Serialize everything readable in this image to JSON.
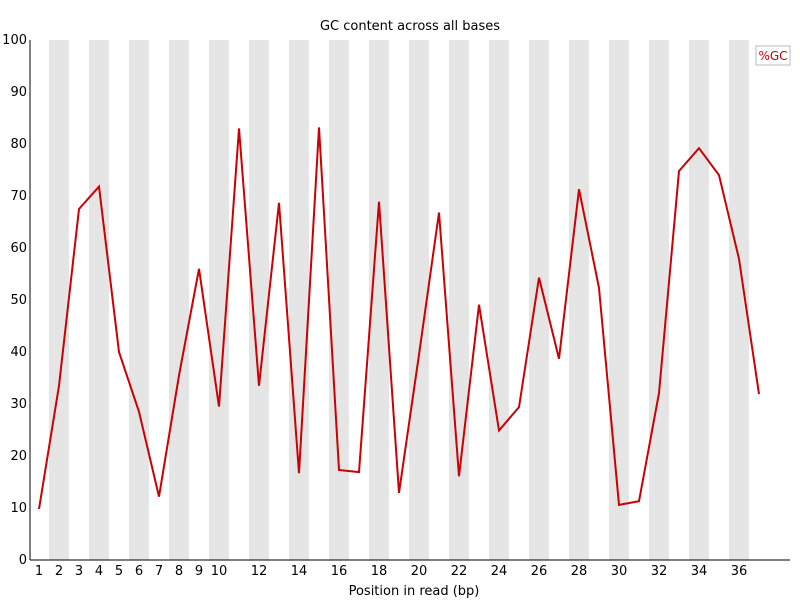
{
  "chart_data": {
    "type": "line",
    "title": "GC content across all bases",
    "xlabel": "Position in read (bp)",
    "ylabel": "",
    "ylim": [
      0,
      100
    ],
    "ytick_step": 10,
    "grid": false,
    "alternating_column_shading": true,
    "legend_placement": "top-right",
    "x_tick_labels": [
      "1",
      "2",
      "3",
      "4",
      "5",
      "6",
      "7",
      "8",
      "9",
      "10",
      "12",
      "14",
      "16",
      "18",
      "20",
      "22",
      "24",
      "26",
      "28",
      "30",
      "32",
      "34",
      "36"
    ],
    "x": [
      1,
      2,
      3,
      4,
      5,
      6,
      7,
      8,
      9,
      10,
      11,
      12,
      13,
      14,
      15,
      16,
      17,
      18,
      19,
      20,
      21,
      22,
      23,
      24,
      25,
      26,
      27,
      28,
      29,
      30,
      31,
      32,
      33,
      34,
      35,
      36,
      37
    ],
    "series": [
      {
        "name": "%GC",
        "color": "#cc0000",
        "values": [
          9.8,
          33.5,
          67.5,
          71.8,
          40.0,
          28.5,
          12.2,
          35.5,
          56.0,
          29.5,
          83.0,
          33.5,
          68.7,
          16.7,
          83.2,
          17.3,
          16.9,
          68.9,
          12.9,
          39.5,
          66.8,
          16.1,
          49.1,
          24.9,
          29.4,
          54.3,
          38.7,
          71.3,
          52.3,
          10.6,
          11.3,
          32.1,
          74.8,
          79.2,
          74.0,
          57.9,
          31.9
        ]
      }
    ]
  }
}
